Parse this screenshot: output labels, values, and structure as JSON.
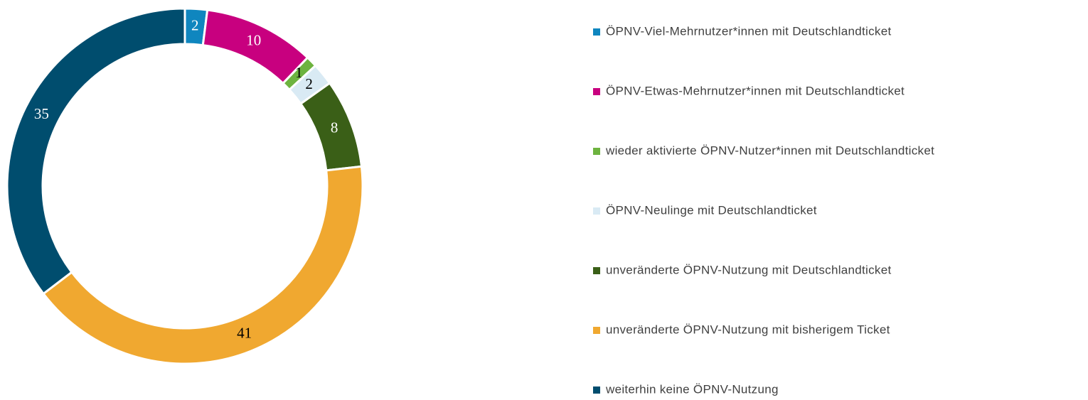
{
  "chart_data": {
    "type": "donut",
    "categories": [
      "ÖPNV-Viel-Mehrnutzer*innen mit Deutschlandticket",
      "ÖPNV-Etwas-Mehrnutzer*innen mit Deutschlandticket",
      "wieder aktivierte ÖPNV-Nutzer*innen mit Deutschlandticket",
      "ÖPNV-Neulinge mit Deutschlandticket",
      "unveränderte ÖPNV-Nutzung mit Deutschlandticket",
      "unveränderte ÖPNV-Nutzung mit bisherigem Ticket",
      "weiterhin keine ÖPNV-Nutzung"
    ],
    "values": [
      2,
      10,
      1,
      2,
      8,
      41,
      35
    ],
    "colors": [
      "#0f86bf",
      "#c8007f",
      "#6db33f",
      "#d9eaf4",
      "#3a5f17",
      "#f0a830",
      "#004d6e"
    ],
    "legend": "right"
  }
}
